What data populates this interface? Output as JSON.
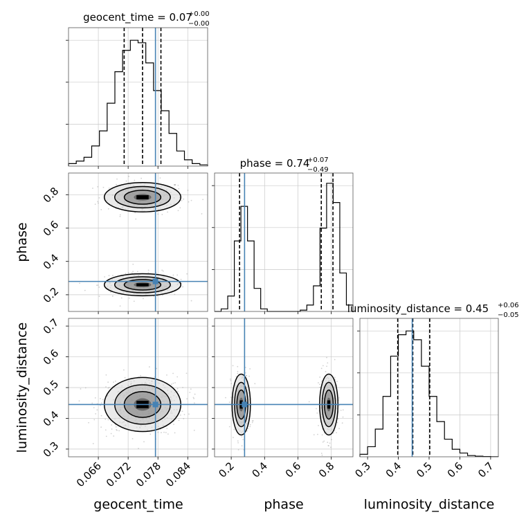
{
  "chart_data": {
    "type": "corner",
    "truth_color": "#4682b4",
    "params": [
      {
        "name": "geocent_time",
        "xlabel": "geocent_time",
        "title": "geocent_time = 0.07",
        "title_plus": "+0.00",
        "title_minus": "−0.00",
        "range": [
          0.06,
          0.088
        ],
        "ticks": [
          "0.066",
          "0.072",
          "0.078",
          "0.084"
        ],
        "tick_values": [
          0.066,
          0.072,
          0.078,
          0.084
        ],
        "truth": 0.0775,
        "quantiles": [
          0.0712,
          0.0749,
          0.0786
        ],
        "hist": [
          0.02,
          0.04,
          0.07,
          0.16,
          0.28,
          0.5,
          0.75,
          0.92,
          1.0,
          0.98,
          0.82,
          0.6,
          0.44,
          0.26,
          0.12,
          0.05,
          0.02,
          0.01
        ],
        "hist_ymax": 1.1
      },
      {
        "name": "phase",
        "xlabel": "phase",
        "ylabel": "phase",
        "title": "phase = 0.74",
        "title_plus": "+0.07",
        "title_minus": "−0.49",
        "range": [
          0.1,
          0.93
        ],
        "ticks": [
          "0.2",
          "0.4",
          "0.6",
          "0.8"
        ],
        "tick_values": [
          0.2,
          0.4,
          0.6,
          0.8
        ],
        "truth": 0.28,
        "quantiles": [
          0.25,
          0.74,
          0.81
        ],
        "hist": [
          0,
          0.02,
          0.12,
          0.55,
          0.82,
          0.55,
          0.18,
          0.02,
          0,
          0,
          0,
          0,
          0,
          0.01,
          0.05,
          0.2,
          0.65,
          1.0,
          0.85,
          0.3,
          0.05
        ],
        "hist_ymax": 1.08
      },
      {
        "name": "luminosity_distance",
        "xlabel": "luminosity_distance",
        "ylabel": "luminosity_distance",
        "title": "luminosity_distance = 0.45",
        "title_plus": "+0.06",
        "title_minus": "−0.05",
        "range": [
          0.275,
          0.725
        ],
        "ticks": [
          "0.3",
          "0.4",
          "0.5",
          "0.6",
          "0.7"
        ],
        "tick_values": [
          0.3,
          0.4,
          0.5,
          0.6,
          0.7
        ],
        "ytick_values": [
          0.3,
          0.4,
          0.5,
          0.6,
          0.7
        ],
        "truth": 0.445,
        "quantiles": [
          0.398,
          0.447,
          0.502
        ],
        "hist": [
          0.02,
          0.08,
          0.22,
          0.48,
          0.8,
          0.97,
          1.0,
          0.93,
          0.72,
          0.48,
          0.28,
          0.14,
          0.06,
          0.03,
          0.01,
          0.005,
          0.002,
          0.001
        ],
        "hist_ymax": 1.1
      }
    ],
    "phase_yticks": [
      0.2,
      0.4,
      0.6,
      0.8
    ],
    "phase_yticks_labels": [
      "0.2",
      "0.4",
      "0.6",
      "0.8"
    ],
    "ld_yticks_labels": [
      "0.3",
      "0.4",
      "0.5",
      "0.6",
      "0.7"
    ],
    "joint_modes": {
      "geocent_time__phase": [
        {
          "x": 0.0749,
          "y": 0.785,
          "sx": 0.0035,
          "sy": 0.04,
          "w": 0.55
        },
        {
          "x": 0.0749,
          "y": 0.26,
          "sx": 0.0035,
          "sy": 0.03,
          "w": 0.45
        }
      ],
      "geocent_time__luminosity_distance": [
        {
          "x": 0.0749,
          "y": 0.445,
          "sx": 0.0035,
          "sy": 0.04,
          "w": 1.0
        }
      ],
      "phase__luminosity_distance": [
        {
          "x": 0.26,
          "y": 0.445,
          "sx": 0.025,
          "sy": 0.045,
          "w": 0.45
        },
        {
          "x": 0.785,
          "y": 0.445,
          "sx": 0.025,
          "sy": 0.045,
          "w": 0.55
        }
      ]
    }
  }
}
